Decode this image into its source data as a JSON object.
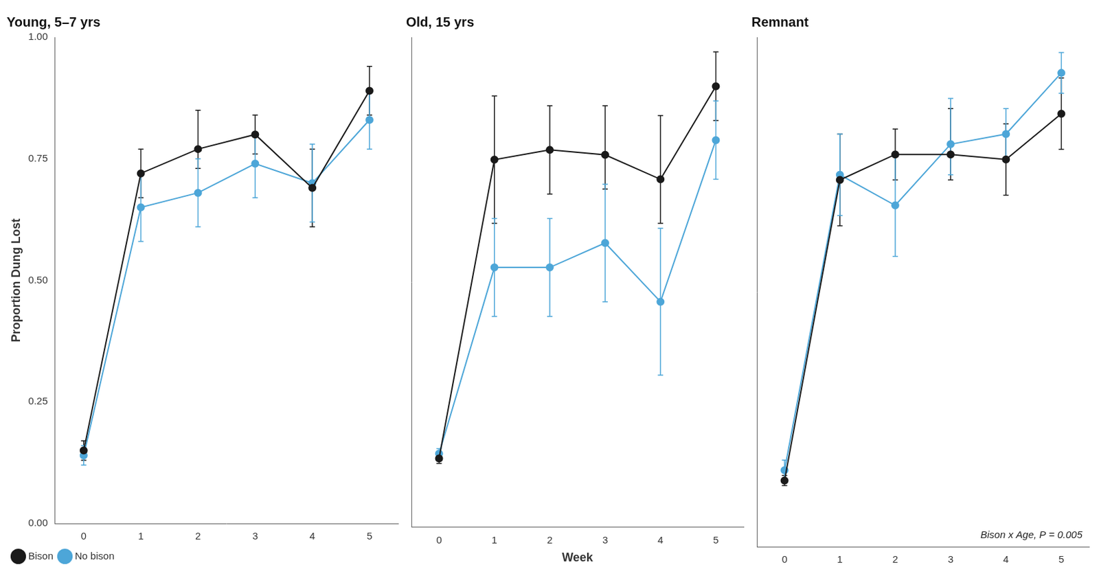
{
  "chart_data": [
    {
      "type": "line",
      "title": "Young, 5–7 yrs",
      "ylabel": "Proportion Dung Lost",
      "x": [
        0,
        1,
        2,
        3,
        4,
        5
      ],
      "xlim": [
        -0.5,
        5.5
      ],
      "xticks": [
        0,
        1,
        2,
        3,
        4,
        5
      ],
      "ylim": [
        0.0,
        1.0
      ],
      "yticks": [
        {
          "value": 0.0,
          "label": "0.00"
        },
        {
          "value": 0.25,
          "label": "0.25"
        },
        {
          "value": 0.5,
          "label": "0.50"
        },
        {
          "value": 0.75,
          "label": "0.75"
        },
        {
          "value": 1.0,
          "label": "1.00"
        }
      ],
      "grid": false,
      "legend": "lower left",
      "series": [
        {
          "name": "Bison",
          "color": "#1a1a1a",
          "marker": "circle",
          "values": [
            0.15,
            0.72,
            0.77,
            0.8,
            0.69,
            0.89
          ],
          "yerr_low": [
            0.02,
            0.05,
            0.04,
            0.04,
            0.08,
            0.05
          ],
          "yerr_high": [
            0.02,
            0.05,
            0.08,
            0.04,
            0.08,
            0.05
          ]
        },
        {
          "name": "No bison",
          "color": "#4da6d8",
          "marker": "circle",
          "values": [
            0.14,
            0.65,
            0.68,
            0.74,
            0.7,
            0.83
          ],
          "yerr_low": [
            0.02,
            0.07,
            0.07,
            0.07,
            0.08,
            0.06
          ],
          "yerr_high": [
            0.02,
            0.07,
            0.07,
            0.06,
            0.08,
            0.06
          ]
        }
      ]
    },
    {
      "type": "line",
      "title": "Old, 15 yrs",
      "xlabel": "Week",
      "x": [
        0,
        1,
        2,
        3,
        4,
        5
      ],
      "xlim": [
        -0.5,
        5.5
      ],
      "xticks": [
        0,
        1,
        2,
        3,
        4,
        5
      ],
      "ylim": [
        0.0,
        1.0
      ],
      "yticks": [
        {
          "value": 0.0,
          "label": "0.00"
        },
        {
          "value": 0.25,
          "label": "0.25"
        },
        {
          "value": 0.5,
          "label": "0.50"
        },
        {
          "value": 0.75,
          "label": "0.75"
        },
        {
          "value": 1.0,
          "label": "1.00"
        }
      ],
      "grid": false,
      "tick_labels": "x",
      "series": [
        {
          "name": "Bison",
          "color": "#1a1a1a",
          "marker": "circle",
          "values": [
            0.14,
            0.75,
            0.77,
            0.76,
            0.71,
            0.9
          ],
          "yerr_low": [
            0.01,
            0.13,
            0.09,
            0.07,
            0.09,
            0.07
          ],
          "yerr_high": [
            0.01,
            0.13,
            0.09,
            0.1,
            0.13,
            0.07
          ]
        },
        {
          "name": "No bison",
          "color": "#4da6d8",
          "marker": "circle",
          "values": [
            0.15,
            0.53,
            0.53,
            0.58,
            0.46,
            0.79
          ],
          "yerr_low": [
            0.01,
            0.1,
            0.1,
            0.12,
            0.15,
            0.08
          ],
          "yerr_high": [
            0.01,
            0.1,
            0.1,
            0.12,
            0.15,
            0.08
          ]
        }
      ]
    },
    {
      "type": "line",
      "title": "Remnant",
      "annotation": "Bison x Age, P = 0.005",
      "x": [
        0,
        1,
        2,
        3,
        4,
        5
      ],
      "xlim": [
        -0.5,
        5.5
      ],
      "xticks": [
        0,
        1,
        2,
        3,
        4,
        5
      ],
      "ylim": [
        0.0,
        1.0
      ],
      "yticks": [
        {
          "value": 0.0,
          "label": "0.00"
        },
        {
          "value": 0.25,
          "label": "0.25"
        },
        {
          "value": 0.5,
          "label": "0.50"
        },
        {
          "value": 0.75,
          "label": "0.75"
        },
        {
          "value": 1.0,
          "label": "1.00"
        }
      ],
      "grid": false,
      "tick_labels": "x",
      "series": [
        {
          "name": "Bison",
          "color": "#1a1a1a",
          "marker": "circle",
          "values": [
            0.13,
            0.72,
            0.77,
            0.77,
            0.76,
            0.85
          ],
          "yerr_low": [
            0.01,
            0.09,
            0.05,
            0.05,
            0.07,
            0.07
          ],
          "yerr_high": [
            0.01,
            0.09,
            0.05,
            0.09,
            0.07,
            0.07
          ]
        },
        {
          "name": "No bison",
          "color": "#4da6d8",
          "marker": "circle",
          "values": [
            0.15,
            0.73,
            0.67,
            0.79,
            0.81,
            0.93
          ],
          "yerr_low": [
            0.02,
            0.08,
            0.1,
            0.06,
            0.05,
            0.04
          ],
          "yerr_high": [
            0.02,
            0.08,
            0.1,
            0.09,
            0.05,
            0.04
          ]
        }
      ]
    }
  ]
}
